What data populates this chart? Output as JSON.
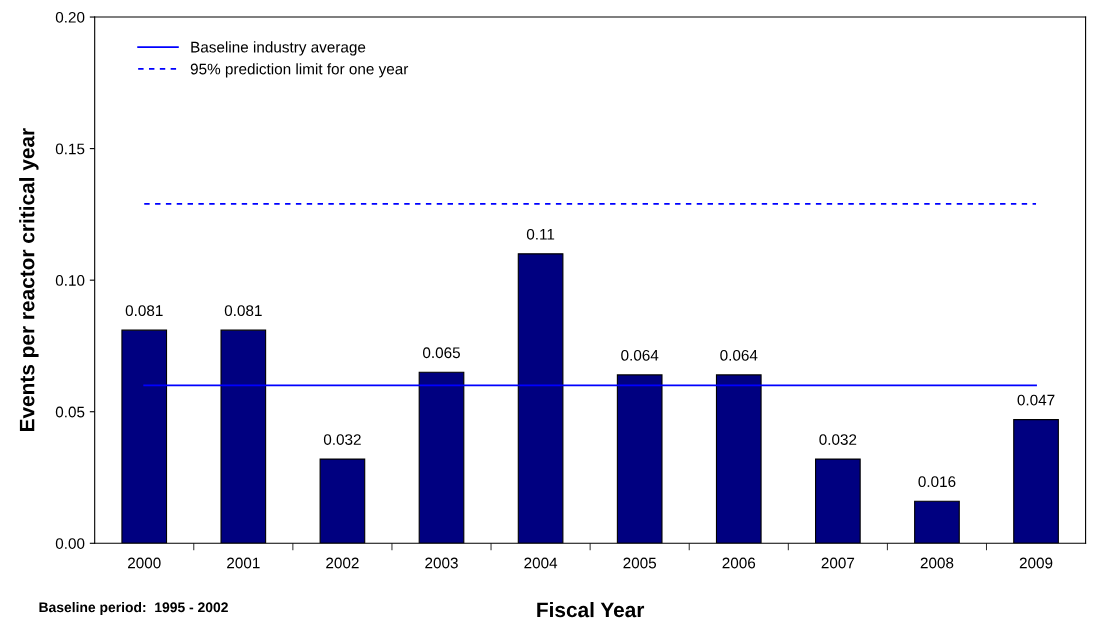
{
  "chart_data": {
    "type": "bar",
    "xlabel": "Fiscal Year",
    "ylabel": "Events per reactor critical year",
    "categories": [
      "2000",
      "2001",
      "2002",
      "2003",
      "2004",
      "2005",
      "2006",
      "2007",
      "2008",
      "2009"
    ],
    "values": [
      0.081,
      0.081,
      0.032,
      0.065,
      0.11,
      0.064,
      0.064,
      0.032,
      0.016,
      0.047
    ],
    "color": "#000080",
    "data_labels": true,
    "ylim": [
      0,
      0.2
    ],
    "yticks": [
      {
        "value": 0,
        "label": "0.00"
      },
      {
        "value": 0.05,
        "label": "0.05"
      },
      {
        "value": 0.1,
        "label": "0.10"
      },
      {
        "value": 0.15,
        "label": "0.15"
      },
      {
        "value": 0.2,
        "label": "0.20"
      }
    ],
    "ref_lines": [
      {
        "axis": "y",
        "value": 0.06,
        "label": "Baseline industry average",
        "color": "#0000ff",
        "line_style": "solid"
      },
      {
        "axis": "y",
        "value": 0.129,
        "label": "95% prediction limit for one year",
        "color": "#0000ff",
        "line_style": "dashed"
      }
    ],
    "legend": "top left",
    "grid": false,
    "annotations": [
      "Baseline period:  1995 - 2002"
    ]
  }
}
